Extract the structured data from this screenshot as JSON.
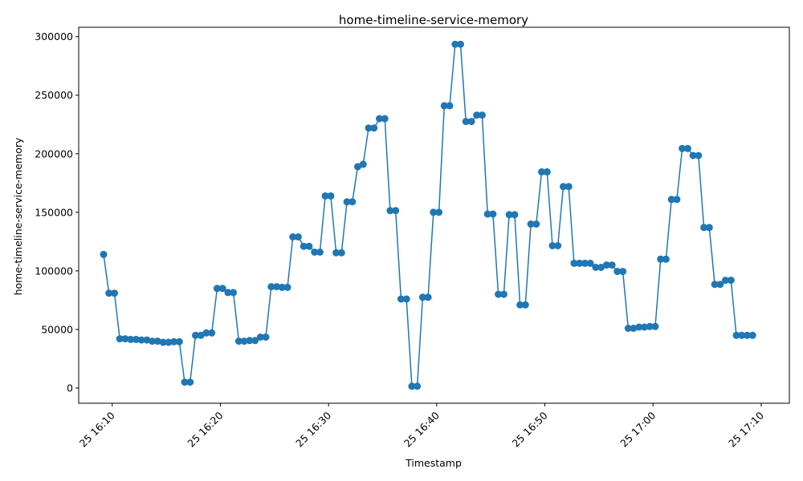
{
  "chart_data": {
    "type": "line",
    "title": "home-timeline-service-memory",
    "xlabel": "Timestamp",
    "ylabel": "home-timeline-service-memory",
    "x_tick_labels": [
      "25 16:10",
      "25 16:20",
      "25 16:30",
      "25 16:40",
      "25 16:50",
      "25 17:00",
      "25 17:10"
    ],
    "x_tick_minutes": [
      10,
      20,
      30,
      40,
      50,
      60,
      70
    ],
    "y_tick_values": [
      0,
      50000,
      100000,
      150000,
      200000,
      250000,
      300000
    ],
    "y_tick_labels": [
      "0",
      "50000",
      "100000",
      "150000",
      "200000",
      "250000",
      "300000"
    ],
    "xlim_minutes": [
      6.9,
      72.6
    ],
    "ylim": [
      -13000,
      308000
    ],
    "color": "#1f77b4",
    "marker": "circle",
    "grid": false,
    "series": [
      {
        "x_minutes": [
          9.2,
          9.7,
          10.2,
          10.7,
          11.2,
          11.7,
          12.2,
          12.7,
          13.2,
          13.7,
          14.2,
          14.7,
          15.2,
          15.7,
          16.2,
          16.7,
          17.2,
          17.7,
          18.2,
          18.7,
          19.2,
          19.7,
          20.2,
          20.7,
          21.2,
          21.7,
          22.2,
          22.7,
          23.2,
          23.7,
          24.2,
          24.7,
          25.2,
          25.7,
          26.2,
          26.7,
          27.2,
          27.7,
          28.2,
          28.7,
          29.2,
          29.7,
          30.2,
          30.7,
          31.2,
          31.7,
          32.2,
          32.7,
          33.2,
          33.7,
          34.2,
          34.7,
          35.2,
          35.7,
          36.2,
          36.7,
          37.2,
          37.7,
          38.2,
          38.7,
          39.2,
          39.7,
          40.2,
          40.7,
          41.2,
          41.7,
          42.2,
          42.7,
          43.2,
          43.7,
          44.2,
          44.7,
          45.2,
          45.7,
          46.2,
          46.7,
          47.2,
          47.7,
          48.2,
          48.7,
          49.2,
          49.7,
          50.2,
          50.7,
          51.2,
          51.7,
          52.2,
          52.7,
          53.2,
          53.7,
          54.2,
          54.7,
          55.2,
          55.7,
          56.2,
          56.7,
          57.2,
          57.7,
          58.2,
          58.7,
          59.2,
          59.7,
          60.2,
          60.7,
          61.2,
          61.7,
          62.2,
          62.7,
          63.2,
          63.7,
          64.2,
          64.7,
          65.2,
          65.7,
          66.2,
          66.7,
          67.2,
          67.7,
          68.2,
          68.7,
          69.2
        ],
        "values": [
          114000,
          81000,
          81000,
          42000,
          42000,
          41500,
          41500,
          41000,
          41000,
          40000,
          40000,
          39000,
          39000,
          39500,
          39500,
          5000,
          5000,
          45000,
          45000,
          47000,
          47000,
          85000,
          85000,
          81500,
          81500,
          40000,
          40000,
          40500,
          40500,
          43500,
          43500,
          86500,
          86500,
          86000,
          86000,
          129000,
          129000,
          121000,
          121000,
          116000,
          116000,
          164000,
          164000,
          115500,
          115500,
          159000,
          159000,
          189000,
          191000,
          222000,
          222000,
          230000,
          230000,
          151500,
          151500,
          76000,
          76000,
          1500,
          1500,
          77500,
          77500,
          150000,
          150000,
          241000,
          241000,
          293500,
          293500,
          227500,
          227500,
          233000,
          233000,
          148500,
          148500,
          80000,
          80000,
          148000,
          148000,
          71000,
          71000,
          140000,
          140000,
          184500,
          184500,
          121500,
          121500,
          172000,
          172000,
          106500,
          106500,
          106500,
          106500,
          103000,
          103000,
          105000,
          105000,
          99500,
          99500,
          51000,
          51000,
          52000,
          52000,
          52500,
          52500,
          110000,
          110000,
          161000,
          161000,
          204500,
          204500,
          198500,
          198500,
          137000,
          137000,
          88500,
          88500,
          92000,
          92000,
          45000,
          45000,
          45000,
          45000
        ]
      }
    ]
  }
}
